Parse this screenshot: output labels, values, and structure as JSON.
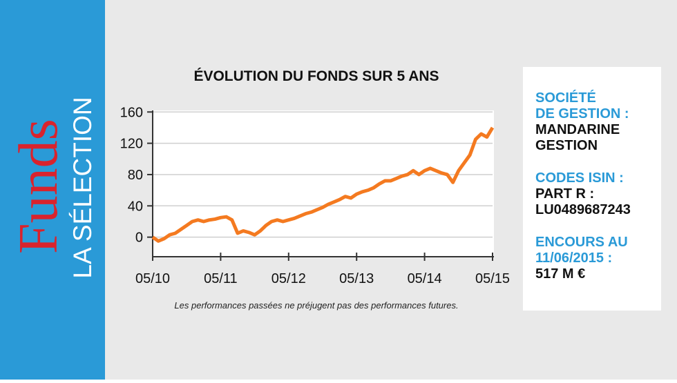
{
  "sidebar": {
    "brand": "Funds",
    "subtitle": "LA SÉLECTION"
  },
  "chart_data": {
    "type": "line",
    "title": "ÉVOLUTION DU FONDS SUR 5 ANS",
    "note": "Les performances passées ne préjugent pas des performances futures.",
    "x": [
      "05/10",
      "06/10",
      "07/10",
      "08/10",
      "09/10",
      "10/10",
      "11/10",
      "12/10",
      "01/11",
      "02/11",
      "03/11",
      "04/11",
      "05/11",
      "06/11",
      "07/11",
      "08/11",
      "09/11",
      "10/11",
      "11/11",
      "12/11",
      "01/12",
      "02/12",
      "03/12",
      "04/12",
      "05/12",
      "06/12",
      "07/12",
      "08/12",
      "09/12",
      "10/12",
      "11/12",
      "12/12",
      "01/13",
      "02/13",
      "03/13",
      "04/13",
      "05/13",
      "06/13",
      "07/13",
      "08/13",
      "09/13",
      "10/13",
      "11/13",
      "12/13",
      "01/14",
      "02/14",
      "03/14",
      "04/14",
      "05/14",
      "06/14",
      "07/14",
      "08/14",
      "09/14",
      "10/14",
      "11/14",
      "12/14",
      "01/15",
      "02/15",
      "03/15",
      "04/15",
      "05/15"
    ],
    "series": [
      {
        "name": "Fonds",
        "color": "#f47a20",
        "values": [
          0,
          -5,
          -2,
          3,
          5,
          10,
          15,
          20,
          22,
          20,
          22,
          23,
          25,
          26,
          22,
          5,
          8,
          6,
          3,
          8,
          15,
          20,
          22,
          20,
          22,
          24,
          27,
          30,
          32,
          35,
          38,
          42,
          45,
          48,
          52,
          50,
          55,
          58,
          60,
          63,
          68,
          72,
          72,
          75,
          78,
          80,
          85,
          80,
          85,
          88,
          85,
          82,
          80,
          70,
          85,
          95,
          105,
          125,
          132,
          128,
          140
        ]
      }
    ],
    "xticks": [
      "05/10",
      "05/11",
      "05/12",
      "05/13",
      "05/14",
      "05/15"
    ],
    "ylim": [
      -25,
      162
    ],
    "yticks": [
      0,
      40,
      80,
      120,
      160
    ],
    "grid": true
  },
  "info": [
    {
      "label": [
        "SOCIÉTÉ",
        "DE GESTION :"
      ],
      "value": [
        "MANDARINE",
        "GESTION"
      ]
    },
    {
      "label": [
        "CODES ISIN :"
      ],
      "value": [
        "PART R :",
        "LU0489687243"
      ]
    },
    {
      "label": [
        "ENCOURS AU",
        "11/06/2015 :"
      ],
      "value": [
        "517 M €"
      ]
    }
  ]
}
